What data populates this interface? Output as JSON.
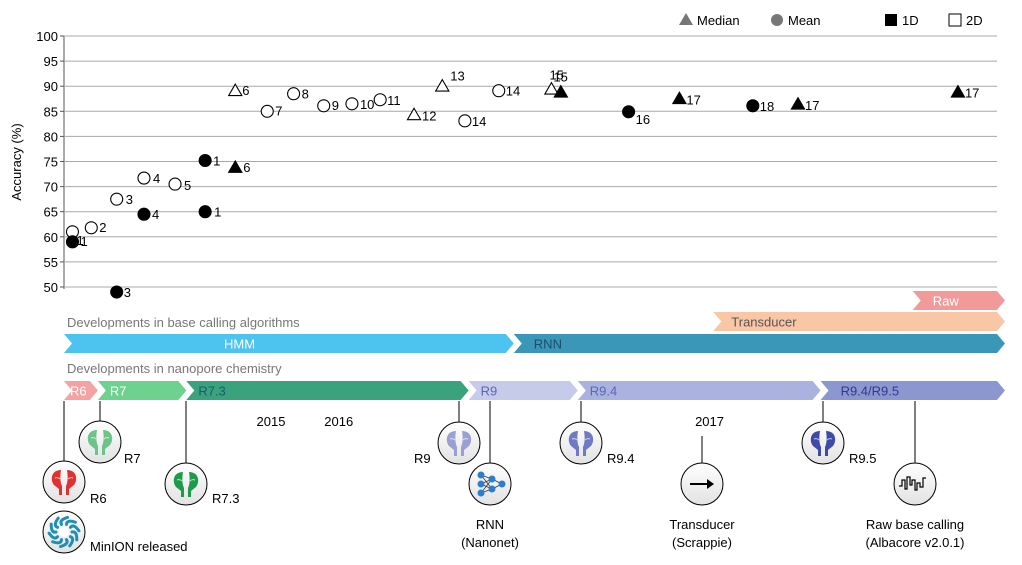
{
  "chart_data": {
    "type": "scatter",
    "ylabel": "Accuracy (%)",
    "ylim": [
      50,
      100
    ],
    "yticks": [
      50,
      55,
      60,
      65,
      70,
      75,
      80,
      85,
      90,
      95,
      100
    ],
    "grid": "horizontal",
    "legend": {
      "placement": "top-right",
      "items": [
        {
          "label": "Median",
          "marker": "triangle"
        },
        {
          "label": "Mean",
          "marker": "circle"
        },
        {
          "label": "1D",
          "marker": "filled-square"
        },
        {
          "label": "2D",
          "marker": "open-square"
        }
      ]
    },
    "points": [
      {
        "label": "1",
        "stat": "mean",
        "read": "2D",
        "time": 0.45,
        "y": 61
      },
      {
        "label": "1",
        "stat": "mean",
        "read": "1D",
        "time": 0.45,
        "y": 59
      },
      {
        "label": "2",
        "stat": "mean",
        "read": "2D",
        "time": 1.45,
        "y": 61.8
      },
      {
        "label": "3",
        "stat": "mean",
        "read": "2D",
        "time": 2.8,
        "y": 67.5
      },
      {
        "label": "3",
        "stat": "mean",
        "read": "1D",
        "time": 2.8,
        "y": 49
      },
      {
        "label": "4",
        "stat": "mean",
        "read": "2D",
        "time": 4.25,
        "y": 71.7
      },
      {
        "label": "4",
        "stat": "mean",
        "read": "1D",
        "time": 4.25,
        "y": 64.5
      },
      {
        "label": "5",
        "stat": "mean",
        "read": "2D",
        "time": 5.9,
        "y": 70.5
      },
      {
        "label": "1",
        "stat": "mean",
        "read": "1D",
        "time": 7.5,
        "y": 75.2
      },
      {
        "label": "1",
        "stat": "mean",
        "read": "1D",
        "time": 7.5,
        "y": 65
      },
      {
        "label": "6",
        "stat": "median",
        "read": "2D",
        "time": 9.1,
        "y": 89
      },
      {
        "label": "6",
        "stat": "median",
        "read": "1D",
        "time": 9.1,
        "y": 73.7
      },
      {
        "label": "7",
        "stat": "mean",
        "read": "2D",
        "time": 10.8,
        "y": 85
      },
      {
        "label": "8",
        "stat": "mean",
        "read": "2D",
        "time": 12.2,
        "y": 88.5
      },
      {
        "label": "9",
        "stat": "mean",
        "read": "2D",
        "time": 13.8,
        "y": 86.1
      },
      {
        "label": "10",
        "stat": "mean",
        "read": "2D",
        "time": 15.3,
        "y": 86.5
      },
      {
        "label": "11",
        "stat": "mean",
        "read": "2D",
        "time": 16.8,
        "y": 87.3
      },
      {
        "label": "12",
        "stat": "median",
        "read": "2D",
        "time": 18.6,
        "y": 84.2
      },
      {
        "label": "13",
        "stat": "median",
        "read": "2D",
        "time": 20.1,
        "y": 89.9
      },
      {
        "label": "14",
        "stat": "mean",
        "read": "2D",
        "time": 21.3,
        "y": 83.1
      },
      {
        "label": "14",
        "stat": "mean",
        "read": "2D",
        "time": 23.1,
        "y": 89.1
      },
      {
        "label": "15",
        "stat": "median",
        "read": "2D",
        "time": 25.9,
        "y": 89.3
      },
      {
        "label": "15",
        "stat": "median",
        "read": "1D",
        "time": 26.4,
        "y": 88.7
      },
      {
        "label": "16",
        "stat": "mean",
        "read": "1D",
        "time": 30,
        "y": 84.9
      },
      {
        "label": "17",
        "stat": "median",
        "read": "1D",
        "time": 32.7,
        "y": 87.4
      },
      {
        "label": "18",
        "stat": "mean",
        "read": "1D",
        "time": 36.6,
        "y": 86.1
      },
      {
        "label": "17",
        "stat": "median",
        "read": "1D",
        "time": 39,
        "y": 86.3
      },
      {
        "label": "17",
        "stat": "median",
        "read": "1D",
        "time": 47.5,
        "y": 88.7
      }
    ],
    "timeline": {
      "range": [
        0,
        50
      ],
      "years": [
        {
          "label": "2015",
          "time": 11
        },
        {
          "label": "2016",
          "time": 14.6
        },
        {
          "label": "2017",
          "time": 34.3
        }
      ],
      "algorithms_title": "Developments in base calling algorithms",
      "algorithms": [
        {
          "label": "Raw",
          "start": 45.1,
          "end": 50,
          "row": 1,
          "color": "#f29a9a",
          "text_color": "#ffffff"
        },
        {
          "label": "Transducer",
          "start": 34.5,
          "end": 50,
          "row": 2,
          "color": "#f9c6a6",
          "text_color": "#555555"
        },
        {
          "label": "HMM",
          "start": 0,
          "end": 23.9,
          "row": 3,
          "color": "#4dc3f0",
          "text_color": "#ffffff"
        },
        {
          "label": "RNN",
          "start": 23.9,
          "end": 50,
          "row": 3,
          "color": "#3a97b7",
          "text_color": "#1c4e6e"
        }
      ],
      "chemistry_title": "Developments in nanopore chemistry",
      "chemistry": [
        {
          "label": "R6",
          "start": 0,
          "end": 1.8,
          "color": "#f4a3a3",
          "text_color": "#ffffff"
        },
        {
          "label": "R7",
          "start": 1.8,
          "end": 6.5,
          "color": "#6ed18e",
          "text_color": "#ffffff"
        },
        {
          "label": "R7.3",
          "start": 6.5,
          "end": 21.5,
          "color": "#3aa37b",
          "text_color": "#1c5a6e"
        },
        {
          "label": "R9",
          "start": 21.5,
          "end": 27.3,
          "color": "#c5cbe9",
          "text_color": "#5b65b3"
        },
        {
          "label": "R9.4",
          "start": 27.3,
          "end": 40.2,
          "color": "#aab3df",
          "text_color": "#5b65b3"
        },
        {
          "label": "R9.4/R9.5",
          "start": 40.2,
          "end": 50,
          "color": "#8c97cf",
          "text_color": "#2f3a8f"
        }
      ],
      "milestones": [
        {
          "label": "R6",
          "time": 0.4,
          "icon": "pore",
          "color": "#e03131"
        },
        {
          "label": "MinION released",
          "time": 0.4,
          "icon": "minion",
          "color": "#1f8fb3"
        },
        {
          "label": "R7",
          "time": 1.8,
          "icon": "pore",
          "color": "#6bc48a"
        },
        {
          "label": "R7.3",
          "time": 6.5,
          "icon": "pore",
          "color": "#1e9a4b"
        },
        {
          "label": "R9",
          "time": 21.5,
          "icon": "pore",
          "color": "#9aa0d3"
        },
        {
          "label": "RNN",
          "sublabel": "(Nanonet)",
          "time": 22.6,
          "icon": "network",
          "color": "#2b7fd0"
        },
        {
          "label": "R9.4",
          "time": 27.3,
          "icon": "pore",
          "color": "#6f79c4"
        },
        {
          "label": "Transducer",
          "sublabel": "(Scrappie)",
          "time": 34.4,
          "icon": "arrow",
          "color": "#000000"
        },
        {
          "label": "R9.5",
          "time": 40.2,
          "icon": "pore",
          "color": "#3f4aa8"
        },
        {
          "label": "Raw base calling",
          "sublabel": "(Albacore v2.0.1)",
          "time": 45.3,
          "icon": "squiggle",
          "color": "#000000"
        }
      ]
    }
  }
}
